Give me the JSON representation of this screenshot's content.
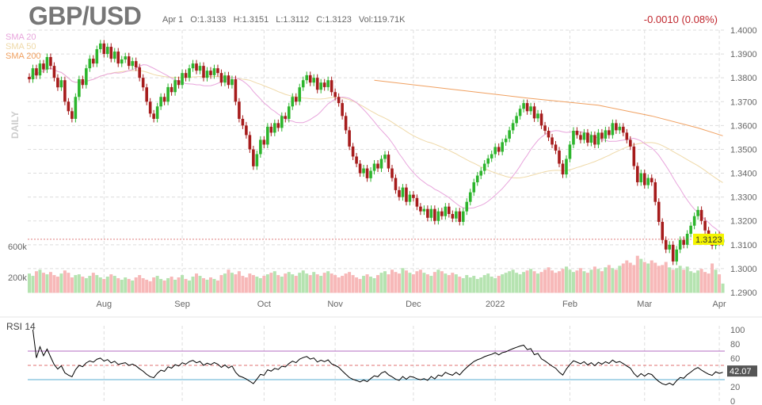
{
  "header": {
    "symbol": "GBP/USD",
    "date": "Apr 1",
    "open": "O:1.3133",
    "high": "H:1.3151",
    "low": "L:1.3112",
    "close": "C:1.3123",
    "volume": "Vol:119.71K",
    "change": "-0.0010 (0.08%)"
  },
  "legend": {
    "sma20": "SMA 20",
    "sma50": "SMA 50",
    "sma200": "SMA 200",
    "period": "DAILY",
    "rsi": "RSI 14"
  },
  "colors": {
    "up": "#2db52d",
    "down": "#a61c1c",
    "volume_up": "#b5e3b0",
    "volume_down": "#f7b8b8",
    "sma20": "#e8a5dc",
    "sma50": "#efd9a8",
    "sma200": "#f0a060",
    "rsi_line": "#000000",
    "rsi_70": "#b36bc0",
    "rsi_50": "#e07070",
    "rsi_30": "#5aaed0",
    "last_price_bg": "#f5f500",
    "change": "#c0262d"
  },
  "chart_data": [
    {
      "type": "candlestick",
      "title": "GBP/USD",
      "ylim": [
        1.29,
        1.4
      ],
      "y_ticks": [
        "1.4000",
        "1.3900",
        "1.3800",
        "1.3700",
        "1.3600",
        "1.3500",
        "1.3400",
        "1.3300",
        "1.3200",
        "1.3100",
        "1.3000",
        "1.2900"
      ],
      "x_ticks": [
        {
          "label": "Aug",
          "day": 21
        },
        {
          "label": "Sep",
          "day": 43
        },
        {
          "label": "Oct",
          "day": 66
        },
        {
          "label": "Nov",
          "day": 86
        },
        {
          "label": "Dec",
          "day": 108
        },
        {
          "label": "2022",
          "day": 131
        },
        {
          "label": "Feb",
          "day": 152
        },
        {
          "label": "Mar",
          "day": 173
        },
        {
          "label": "Apr",
          "day": 194
        }
      ],
      "last_price": "1.3123",
      "grid": true,
      "closes": [
        1.3794,
        1.384,
        1.381,
        1.386,
        1.3835,
        1.3887,
        1.385,
        1.38,
        1.376,
        1.379,
        1.37,
        1.366,
        1.3628,
        1.372,
        1.3794,
        1.377,
        1.384,
        1.388,
        1.386,
        1.392,
        1.3944,
        1.39,
        1.393,
        1.388,
        1.391,
        1.386,
        1.3877,
        1.389,
        1.385,
        1.387,
        1.3844,
        1.38,
        1.376,
        1.37,
        1.365,
        1.3628,
        1.368,
        1.372,
        1.37,
        1.3761,
        1.374,
        1.379,
        1.377,
        1.382,
        1.38,
        1.384,
        1.386,
        1.383,
        1.385,
        1.38,
        1.383,
        1.3811,
        1.384,
        1.382,
        1.378,
        1.381,
        1.377,
        1.3794,
        1.37,
        1.3628,
        1.36,
        1.356,
        1.35,
        1.3429,
        1.348,
        1.354,
        1.352,
        1.3595,
        1.357,
        1.361,
        1.359,
        1.364,
        1.3628,
        1.368,
        1.372,
        1.37,
        1.376,
        1.379,
        1.3811,
        1.378,
        1.38,
        1.375,
        1.378,
        1.3761,
        1.379,
        1.374,
        1.372,
        1.3694,
        1.364,
        1.358,
        1.3512,
        1.347,
        1.344,
        1.34,
        1.342,
        1.3379,
        1.341,
        1.344,
        1.342,
        1.346,
        1.3478,
        1.342,
        1.338,
        1.3329,
        1.33,
        1.334,
        1.328,
        1.331,
        1.3296,
        1.326,
        1.324,
        1.325,
        1.3213,
        1.325,
        1.32,
        1.324,
        1.322,
        1.326,
        1.3229,
        1.321,
        1.324,
        1.3196,
        1.324,
        1.328,
        1.332,
        1.3362,
        1.339,
        1.341,
        1.344,
        1.3462,
        1.348,
        1.351,
        1.349,
        1.353,
        1.3545,
        1.358,
        1.361,
        1.364,
        1.367,
        1.3694,
        1.366,
        1.368,
        1.363,
        1.365,
        1.36,
        1.3578,
        1.355,
        1.352,
        1.3495,
        1.344,
        1.3395,
        1.346,
        1.352,
        1.3578,
        1.356,
        1.354,
        1.357,
        1.3528,
        1.356,
        1.352,
        1.357,
        1.3545,
        1.358,
        1.356,
        1.361,
        1.358,
        1.3595,
        1.357,
        1.354,
        1.3512,
        1.343,
        1.3362,
        1.34,
        1.335,
        1.338,
        1.3362,
        1.328,
        1.3196,
        1.312,
        1.308,
        1.31,
        1.303,
        1.308,
        1.312,
        1.31,
        1.3146,
        1.318,
        1.322,
        1.3246,
        1.32,
        1.316,
        1.312,
        1.3096,
        1.314,
        1.311,
        1.3123
      ],
      "sma200": [
        {
          "day": 97,
          "value": 1.379
        },
        {
          "day": 120,
          "value": 1.375
        },
        {
          "day": 140,
          "value": 1.3715
        },
        {
          "day": 160,
          "value": 1.3685
        },
        {
          "day": 175,
          "value": 1.364
        },
        {
          "day": 188,
          "value": 1.359
        },
        {
          "day": 195,
          "value": 1.3557
        }
      ]
    },
    {
      "type": "bar",
      "title": "Volume",
      "y_ticks": [
        "600k",
        "200k"
      ],
      "unit": "k",
      "values": [
        250,
        220,
        280,
        300,
        260,
        240,
        270,
        230,
        210,
        250,
        290,
        260,
        200,
        230,
        240,
        210,
        190,
        220,
        260,
        230,
        200,
        180,
        210,
        240,
        220,
        190,
        170,
        200,
        180,
        160,
        200,
        230,
        190,
        170,
        150,
        200,
        220,
        180,
        160,
        190,
        210,
        170,
        200,
        230,
        180,
        160,
        210,
        250,
        220,
        190,
        170,
        200,
        180,
        160,
        230,
        250,
        300,
        260,
        240,
        280,
        220,
        200,
        250,
        230,
        210,
        190,
        220,
        240,
        260,
        280,
        230,
        210,
        250,
        270,
        240,
        220,
        260,
        290,
        250,
        230,
        270,
        240,
        220,
        260,
        280,
        250,
        230,
        200,
        220,
        250,
        270,
        230,
        200,
        180,
        220,
        240,
        210,
        190,
        230,
        260,
        280,
        240,
        300,
        270,
        250,
        320,
        290,
        260,
        240,
        280,
        300,
        260,
        240,
        220,
        270,
        300,
        280,
        250,
        230,
        260,
        240,
        210,
        190,
        230,
        200,
        220,
        180,
        200,
        230,
        250,
        210,
        190,
        220,
        240,
        260,
        280,
        300,
        260,
        240,
        270,
        290,
        310,
        280,
        250,
        270,
        300,
        330,
        290,
        260,
        280,
        310,
        340,
        300,
        270,
        290,
        320,
        280,
        260,
        300,
        340,
        310,
        280,
        330,
        360,
        320,
        300,
        350,
        380,
        420,
        390,
        360,
        480,
        440,
        400,
        380,
        420,
        390,
        350,
        360,
        400,
        330,
        300,
        320,
        350,
        300,
        340,
        280,
        260,
        290,
        310,
        270,
        250,
        380,
        300,
        240,
        120
      ]
    },
    {
      "type": "line",
      "title": "RSI 14",
      "ylim": [
        0,
        100
      ],
      "y_ticks": [
        "100",
        "80",
        "60",
        "20",
        "0"
      ],
      "levels": [
        70,
        50,
        30
      ],
      "last_value": "42.07"
    }
  ]
}
